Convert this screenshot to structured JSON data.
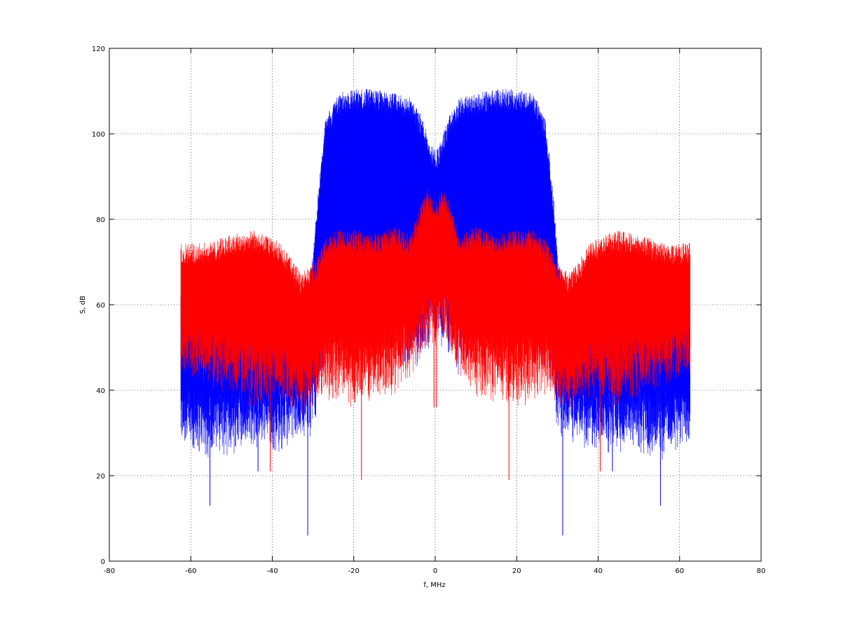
{
  "chart_data": {
    "type": "line",
    "title": "",
    "xlabel": "f, MHz",
    "ylabel": "S, dB",
    "xlim": [
      -80,
      80
    ],
    "ylim": [
      0,
      120
    ],
    "x_ticks": [
      -80,
      -60,
      -40,
      -20,
      0,
      20,
      40,
      60,
      80
    ],
    "y_ticks": [
      0,
      20,
      40,
      60,
      80,
      100,
      120
    ],
    "grid": true,
    "legend": "none",
    "x_range_data": [
      -62.5,
      62.5
    ],
    "series": [
      {
        "color": "#0000ff",
        "description_of_shape": "dense noisy spectrum",
        "envelope_x": [
          -62,
          -56,
          -50,
          -44,
          -38,
          -32,
          -30,
          -29,
          -27,
          -24,
          -20,
          -15,
          -10,
          -6,
          -3,
          -1,
          0,
          1,
          3,
          6,
          10,
          15,
          20,
          24,
          27,
          29,
          30,
          32,
          38,
          44,
          50,
          56,
          62
        ],
        "envelope_upper": [
          60,
          61,
          60,
          60,
          59,
          60,
          68,
          82,
          100,
          106,
          107,
          107,
          106,
          105,
          100,
          94,
          93,
          94,
          100,
          105,
          106,
          107,
          107,
          106,
          100,
          82,
          68,
          60,
          59,
          60,
          60,
          61,
          60
        ],
        "envelope_lower": [
          36,
          34,
          35,
          35,
          35,
          38,
          40,
          48,
          58,
          62,
          63,
          64,
          62,
          58,
          60,
          62,
          60,
          62,
          60,
          58,
          62,
          64,
          63,
          62,
          58,
          48,
          40,
          38,
          35,
          35,
          35,
          34,
          36
        ],
        "dip_points": [
          {
            "x": -55.3,
            "y": 13
          },
          {
            "x": -31.3,
            "y": 6
          },
          {
            "x": 31.3,
            "y": 6
          },
          {
            "x": 55.3,
            "y": 13
          },
          {
            "x": -43.5,
            "y": 21
          },
          {
            "x": 43.5,
            "y": 21
          }
        ]
      },
      {
        "color": "#ff0000",
        "description_of_shape": "dense noisy spectrum",
        "envelope_x": [
          -62,
          -56,
          -50,
          -44,
          -38,
          -33,
          -30,
          -27,
          -24,
          -20,
          -15,
          -10,
          -6,
          -4,
          -2,
          0,
          2,
          4,
          6,
          10,
          15,
          20,
          24,
          27,
          30,
          33,
          38,
          44,
          50,
          56,
          62
        ],
        "envelope_upper": [
          71,
          71,
          73,
          74,
          71,
          64,
          66,
          72,
          74,
          74,
          73,
          75,
          73,
          79,
          84,
          80,
          84,
          79,
          73,
          75,
          73,
          74,
          74,
          72,
          66,
          64,
          71,
          74,
          73,
          71,
          71
        ],
        "envelope_lower": [
          52,
          50,
          48,
          46,
          47,
          43,
          45,
          48,
          47,
          46,
          47,
          49,
          52,
          56,
          60,
          58,
          60,
          56,
          52,
          49,
          47,
          46,
          47,
          48,
          45,
          43,
          47,
          46,
          48,
          50,
          52
        ],
        "dip_points": [
          {
            "x": -18.1,
            "y": 19
          },
          {
            "x": 18.1,
            "y": 19
          },
          {
            "x": -0.3,
            "y": 36
          },
          {
            "x": 0.3,
            "y": 36
          },
          {
            "x": -40.5,
            "y": 21
          },
          {
            "x": 40.5,
            "y": 21
          }
        ]
      }
    ]
  }
}
